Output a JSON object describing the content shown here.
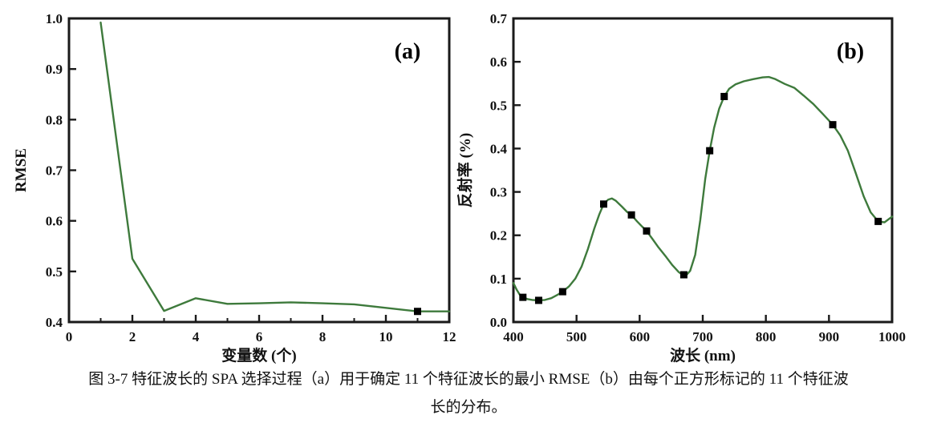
{
  "page": {
    "background": "#ffffff"
  },
  "figure_caption": {
    "line1": "图 3-7 特征波长的 SPA 选择过程（a）用于确定 11 个特征波长的最小 RMSE（b）由每个正方形标记的 11 个特征波",
    "line2": "长的分布。"
  },
  "colors": {
    "line_green": "#3e7a3c",
    "marker_black": "#000000",
    "axis_black": "#1a1a1a"
  },
  "chart_data": [
    {
      "id": "a",
      "type": "line",
      "panel_label": "(a)",
      "xlabel": "变量数 (个)",
      "ylabel": "RMSE",
      "xlim": [
        0,
        12
      ],
      "ylim": [
        0.4,
        1.0
      ],
      "grid": false,
      "legend": null,
      "xticks": {
        "values": [
          0,
          2,
          4,
          6,
          8,
          10,
          12
        ],
        "labels": [
          "0",
          "2",
          "4",
          "6",
          "8",
          "10",
          "12"
        ],
        "minor": [
          1,
          3,
          5,
          7,
          9,
          11
        ]
      },
      "yticks": {
        "values": [
          0.4,
          0.5,
          0.6,
          0.7,
          0.8,
          0.9,
          1.0
        ],
        "labels": [
          "0.4",
          "0.5",
          "0.6",
          "0.7",
          "0.8",
          "0.9",
          "1.0"
        ],
        "minor": []
      },
      "curve": {
        "x": [
          1,
          2,
          3,
          4,
          5,
          6,
          7,
          8,
          9,
          10,
          11,
          12
        ],
        "y": [
          0.992,
          0.525,
          0.422,
          0.447,
          0.436,
          0.437,
          0.439,
          0.437,
          0.435,
          0.428,
          0.421,
          0.421
        ]
      },
      "markers": [
        {
          "x": 11,
          "y": 0.421
        }
      ]
    },
    {
      "id": "b",
      "type": "line",
      "panel_label": "(b)",
      "xlabel": "波长 (nm)",
      "ylabel": "反射率 (%)",
      "xlim": [
        400,
        1000
      ],
      "ylim": [
        0.0,
        0.7
      ],
      "grid": false,
      "legend": null,
      "xticks": {
        "values": [
          400,
          500,
          600,
          700,
          800,
          900,
          1000
        ],
        "labels": [
          "400",
          "500",
          "600",
          "700",
          "800",
          "900",
          "1000"
        ],
        "minor": []
      },
      "yticks": {
        "values": [
          0,
          0.1,
          0.2,
          0.3,
          0.4,
          0.5,
          0.6,
          0.7
        ],
        "labels": [
          "0.0",
          "0.1",
          "0.2",
          "0.3",
          "0.4",
          "0.5",
          "0.6",
          "0.7"
        ],
        "minor": []
      },
      "curve": {
        "x": [
          400,
          405,
          410,
          415,
          422,
          430,
          440,
          450,
          460,
          470,
          478,
          488,
          498,
          508,
          518,
          528,
          536,
          543,
          550,
          556,
          562,
          572,
          580,
          587,
          596,
          604,
          611,
          620,
          630,
          642,
          652,
          662,
          668,
          674,
          680,
          688,
          696,
          704,
          711,
          718,
          726,
          734,
          742,
          752,
          765,
          780,
          795,
          805,
          815,
          830,
          845,
          860,
          875,
          890,
          906,
          918,
          930,
          942,
          955,
          966,
          978,
          988,
          1000
        ],
        "y": [
          0.09,
          0.075,
          0.063,
          0.057,
          0.053,
          0.051,
          0.05,
          0.051,
          0.055,
          0.063,
          0.07,
          0.082,
          0.1,
          0.128,
          0.168,
          0.215,
          0.248,
          0.272,
          0.282,
          0.285,
          0.28,
          0.266,
          0.254,
          0.247,
          0.232,
          0.22,
          0.21,
          0.192,
          0.172,
          0.15,
          0.131,
          0.115,
          0.109,
          0.108,
          0.118,
          0.155,
          0.235,
          0.33,
          0.395,
          0.448,
          0.492,
          0.52,
          0.538,
          0.548,
          0.555,
          0.56,
          0.564,
          0.565,
          0.56,
          0.549,
          0.54,
          0.522,
          0.503,
          0.48,
          0.455,
          0.43,
          0.395,
          0.345,
          0.29,
          0.253,
          0.232,
          0.23,
          0.243
        ]
      },
      "markers": [
        {
          "x": 415,
          "y": 0.057
        },
        {
          "x": 440,
          "y": 0.05
        },
        {
          "x": 478,
          "y": 0.07
        },
        {
          "x": 543,
          "y": 0.272
        },
        {
          "x": 587,
          "y": 0.247
        },
        {
          "x": 611,
          "y": 0.21
        },
        {
          "x": 670,
          "y": 0.109
        },
        {
          "x": 711,
          "y": 0.395
        },
        {
          "x": 734,
          "y": 0.52
        },
        {
          "x": 906,
          "y": 0.455
        },
        {
          "x": 978,
          "y": 0.232
        }
      ]
    }
  ]
}
